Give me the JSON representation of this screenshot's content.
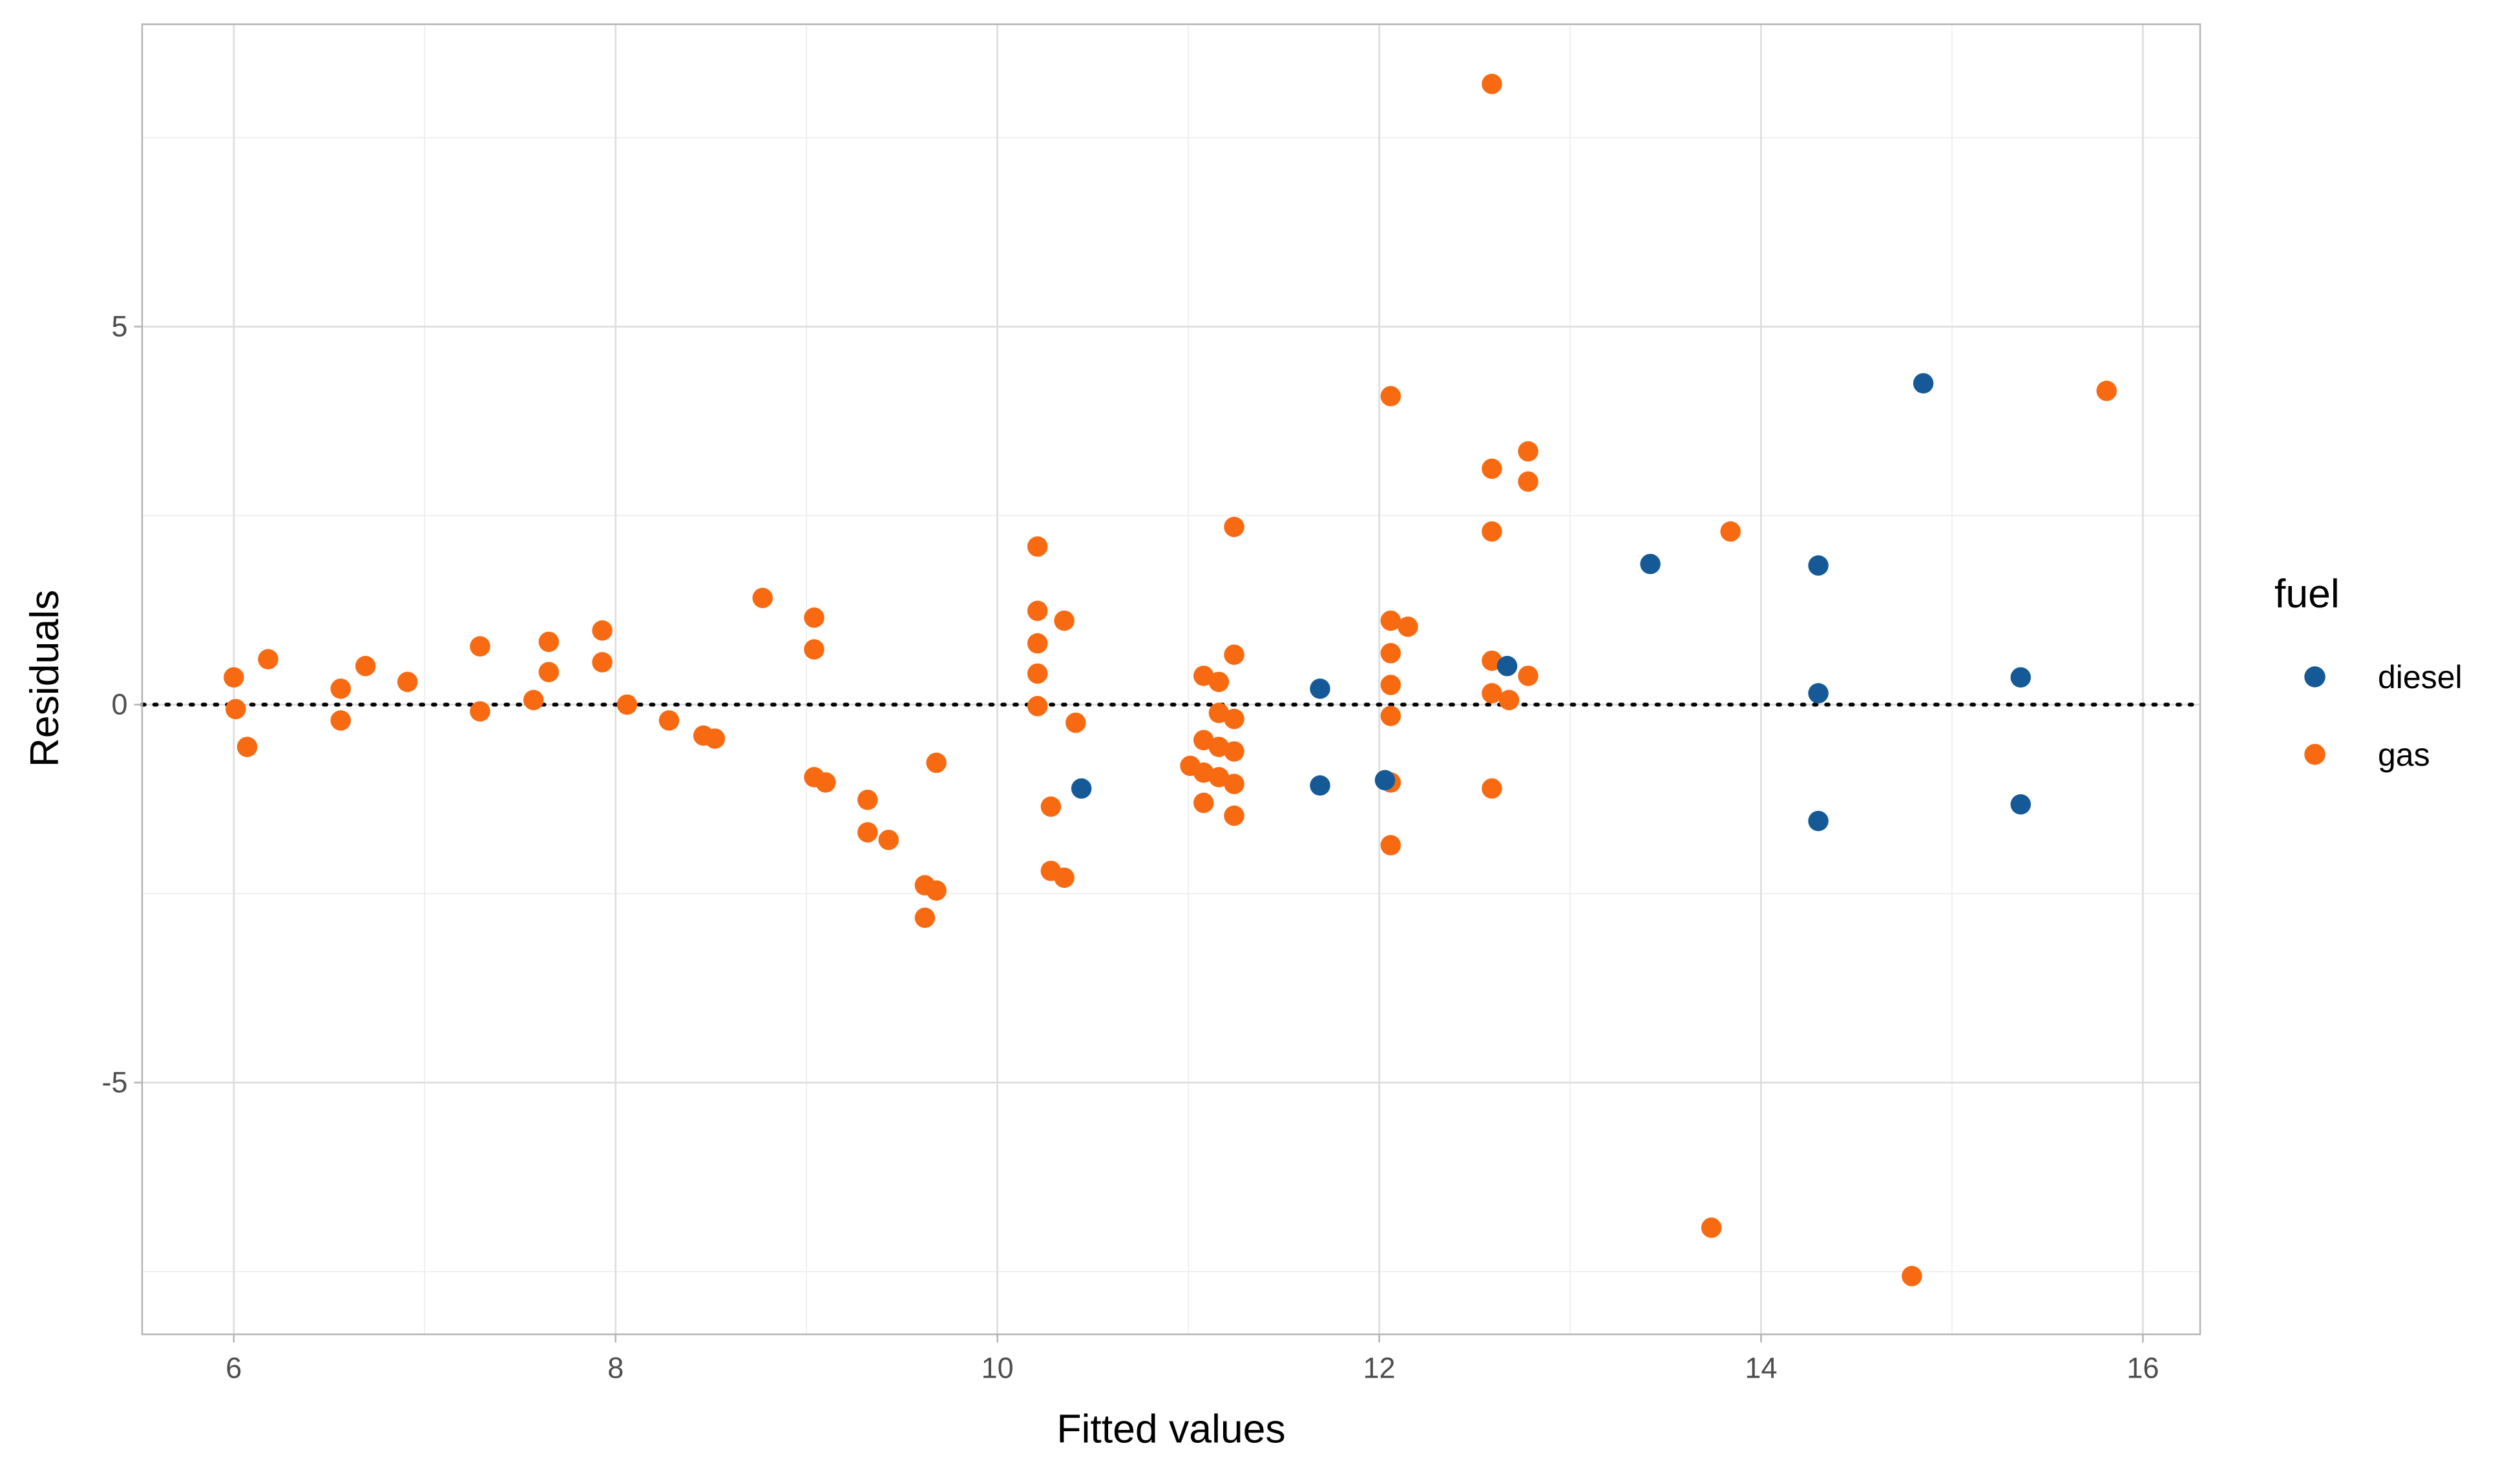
{
  "chart_data": {
    "type": "scatter",
    "title": "",
    "xlabel": "Fitted values",
    "ylabel": "Residuals",
    "xlim": [
      5.52,
      16.3
    ],
    "ylim": [
      -8.33,
      9.0
    ],
    "xticks": [
      6,
      8,
      10,
      12,
      14,
      16
    ],
    "xtick_labels": [
      "6",
      "8",
      "10",
      "12",
      "14",
      "16"
    ],
    "yticks": [
      -5,
      0,
      5
    ],
    "ytick_labels": [
      "-5",
      "0",
      "5"
    ],
    "grid": true,
    "reference_line": {
      "y": 0,
      "style": "dotted"
    },
    "legend": {
      "title": "fuel",
      "placement": "right",
      "entries": [
        "diesel",
        "gas"
      ]
    },
    "series": [
      {
        "name": "diesel",
        "color": "#155a96",
        "points": [
          [
            10.44,
            -1.11
          ],
          [
            11.69,
            0.21
          ],
          [
            11.69,
            -1.07
          ],
          [
            12.03,
            -1.0
          ],
          [
            12.67,
            0.51
          ],
          [
            13.42,
            1.86
          ],
          [
            14.3,
            1.84
          ],
          [
            14.3,
            0.15
          ],
          [
            14.3,
            -1.54
          ],
          [
            14.85,
            4.25
          ],
          [
            15.36,
            0.36
          ],
          [
            15.36,
            -1.32
          ]
        ]
      },
      {
        "name": "gas",
        "color": "#f86a12",
        "points": [
          [
            6.0,
            0.36
          ],
          [
            6.01,
            -0.06
          ],
          [
            6.18,
            0.6
          ],
          [
            6.07,
            -0.56
          ],
          [
            6.56,
            0.21
          ],
          [
            6.56,
            -0.21
          ],
          [
            6.69,
            0.51
          ],
          [
            6.91,
            0.3
          ],
          [
            7.29,
            0.77
          ],
          [
            7.29,
            -0.09
          ],
          [
            7.57,
            0.06
          ],
          [
            7.65,
            0.83
          ],
          [
            7.65,
            0.43
          ],
          [
            7.93,
            0.98
          ],
          [
            7.93,
            0.56
          ],
          [
            8.06,
            0.0
          ],
          [
            8.28,
            -0.21
          ],
          [
            8.46,
            -0.41
          ],
          [
            8.52,
            -0.45
          ],
          [
            8.77,
            1.41
          ],
          [
            9.04,
            1.15
          ],
          [
            9.04,
            0.73
          ],
          [
            9.04,
            -0.96
          ],
          [
            9.1,
            -1.03
          ],
          [
            9.32,
            -1.26
          ],
          [
            9.32,
            -1.69
          ],
          [
            9.43,
            -1.79
          ],
          [
            9.62,
            -2.39
          ],
          [
            9.68,
            -2.46
          ],
          [
            9.62,
            -2.82
          ],
          [
            9.68,
            -0.77
          ],
          [
            10.21,
            2.09
          ],
          [
            10.21,
            1.24
          ],
          [
            10.21,
            0.81
          ],
          [
            10.21,
            0.41
          ],
          [
            10.21,
            -0.02
          ],
          [
            10.35,
            1.11
          ],
          [
            10.28,
            -1.35
          ],
          [
            10.41,
            -0.24
          ],
          [
            10.28,
            -2.2
          ],
          [
            10.35,
            -2.29
          ],
          [
            11.01,
            -0.81
          ],
          [
            11.08,
            0.38
          ],
          [
            11.08,
            -0.47
          ],
          [
            11.08,
            -0.9
          ],
          [
            11.08,
            -1.3
          ],
          [
            11.16,
            0.3
          ],
          [
            11.16,
            -0.11
          ],
          [
            11.16,
            -0.56
          ],
          [
            11.16,
            -0.96
          ],
          [
            11.24,
            2.35
          ],
          [
            11.24,
            0.66
          ],
          [
            11.24,
            -0.19
          ],
          [
            11.24,
            -0.62
          ],
          [
            11.24,
            -1.05
          ],
          [
            11.24,
            -1.47
          ],
          [
            12.06,
            4.08
          ],
          [
            12.06,
            1.11
          ],
          [
            12.06,
            0.68
          ],
          [
            12.06,
            0.26
          ],
          [
            12.06,
            -0.15
          ],
          [
            12.06,
            -1.03
          ],
          [
            12.06,
            -1.86
          ],
          [
            12.15,
            1.03
          ],
          [
            12.59,
            8.21
          ],
          [
            12.59,
            3.12
          ],
          [
            12.59,
            2.29
          ],
          [
            12.59,
            0.58
          ],
          [
            12.59,
            0.15
          ],
          [
            12.59,
            -1.11
          ],
          [
            12.68,
            0.06
          ],
          [
            12.78,
            3.35
          ],
          [
            12.78,
            2.95
          ],
          [
            12.78,
            0.38
          ],
          [
            13.84,
            2.29
          ],
          [
            13.74,
            -6.92
          ],
          [
            14.79,
            -7.56
          ],
          [
            15.81,
            4.15
          ]
        ]
      }
    ]
  }
}
